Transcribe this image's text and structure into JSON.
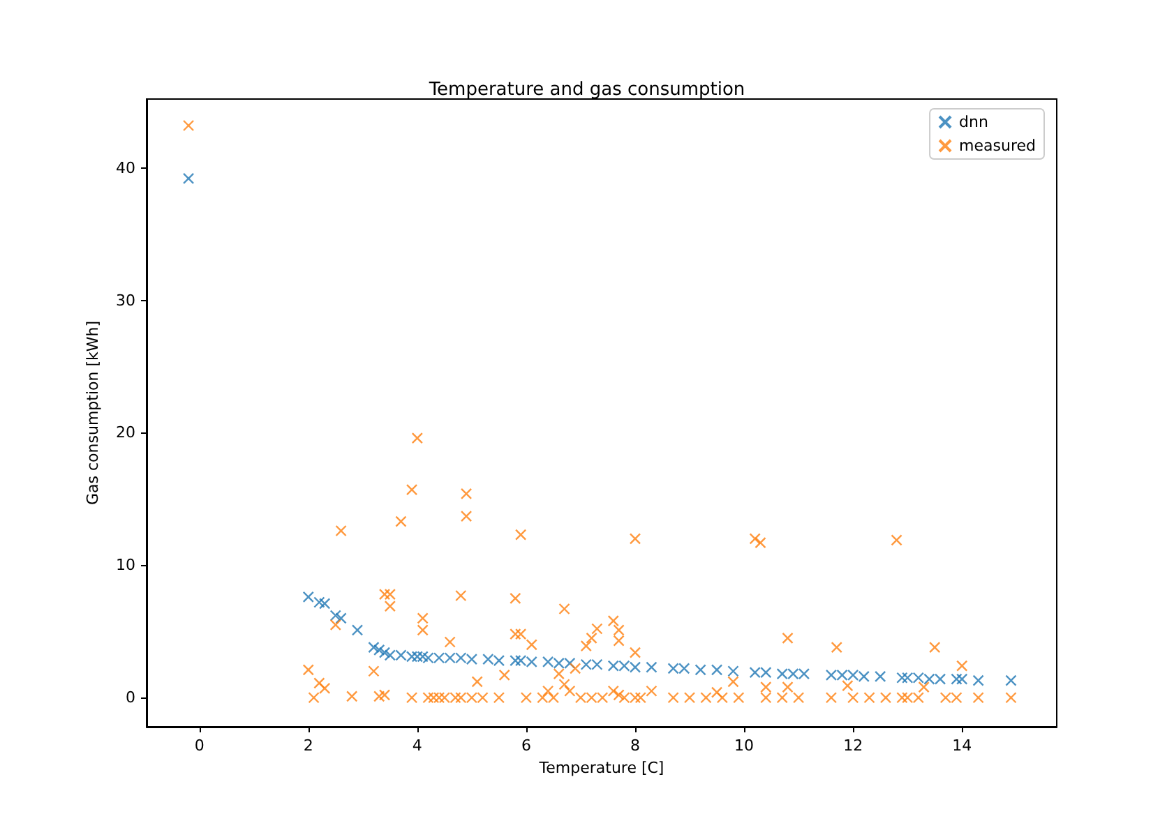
{
  "chart_data": {
    "type": "scatter",
    "title": "Temperature and gas consumption",
    "xlabel": "Temperature [C]",
    "ylabel": "Gas consumption [kWh]",
    "xlim": [
      -0.97,
      15.74
    ],
    "ylim": [
      -2.2,
      45.2
    ],
    "xticks": [
      0,
      2,
      4,
      6,
      8,
      10,
      12,
      14
    ],
    "yticks": [
      0,
      10,
      20,
      30,
      40
    ],
    "grid": false,
    "legend": "top right",
    "marker": "cross",
    "series": [
      {
        "name": "dnn",
        "color": "#1f77b4",
        "x": [
          -0.2,
          2.0,
          2.2,
          2.3,
          2.5,
          2.6,
          2.9,
          3.2,
          3.3,
          3.4,
          3.5,
          3.7,
          3.9,
          4.0,
          4.1,
          4.2,
          4.4,
          4.6,
          4.8,
          5.0,
          5.3,
          5.5,
          5.8,
          5.9,
          6.1,
          6.4,
          6.6,
          6.8,
          7.1,
          7.3,
          7.6,
          7.8,
          8.0,
          8.3,
          8.7,
          8.9,
          9.2,
          9.5,
          9.8,
          10.2,
          10.4,
          10.7,
          10.9,
          11.1,
          11.6,
          11.8,
          12.0,
          12.2,
          12.5,
          12.9,
          13.0,
          13.2,
          13.4,
          13.6,
          13.9,
          14.0,
          14.3,
          14.9
        ],
        "values": [
          39.2,
          7.6,
          7.2,
          7.1,
          6.2,
          6.0,
          5.1,
          3.8,
          3.6,
          3.4,
          3.2,
          3.2,
          3.1,
          3.1,
          3.1,
          3.0,
          3.0,
          3.0,
          3.0,
          2.9,
          2.9,
          2.8,
          2.8,
          2.8,
          2.7,
          2.7,
          2.6,
          2.6,
          2.5,
          2.5,
          2.4,
          2.4,
          2.3,
          2.3,
          2.2,
          2.2,
          2.1,
          2.1,
          2.0,
          1.9,
          1.9,
          1.8,
          1.8,
          1.8,
          1.7,
          1.7,
          1.7,
          1.6,
          1.6,
          1.5,
          1.5,
          1.5,
          1.4,
          1.4,
          1.4,
          1.4,
          1.3,
          1.3
        ]
      },
      {
        "name": "measured",
        "color": "#ff7f0e",
        "x": [
          -0.2,
          4.0,
          3.9,
          4.9,
          4.9,
          3.7,
          2.6,
          5.9,
          8.0,
          10.2,
          10.3,
          12.8,
          4.1,
          4.1,
          3.5,
          3.4,
          3.5,
          4.8,
          5.8,
          6.7,
          2.5,
          4.6,
          6.1,
          7.6,
          7.7,
          7.3,
          7.2,
          7.1,
          7.7,
          8.0,
          5.8,
          5.9,
          10.8,
          11.7,
          13.5,
          14.0,
          2.0,
          2.2,
          2.3,
          3.2,
          3.4,
          3.3,
          2.1,
          2.8,
          3.9,
          4.2,
          4.3,
          4.4,
          4.7,
          4.8,
          5.0,
          5.1,
          5.6,
          5.5,
          6.0,
          6.3,
          6.4,
          6.5,
          6.6,
          6.7,
          6.8,
          6.9,
          7.0,
          7.2,
          7.4,
          7.6,
          7.7,
          7.8,
          8.0,
          8.1,
          8.3,
          8.7,
          9.0,
          9.3,
          9.5,
          9.6,
          9.8,
          9.9,
          10.4,
          10.4,
          10.7,
          10.8,
          11.0,
          11.6,
          11.9,
          12.0,
          12.3,
          12.6,
          12.9,
          13.0,
          13.2,
          13.3,
          13.7,
          13.9,
          14.3,
          14.9,
          4.5,
          5.2
        ],
        "values": [
          43.2,
          19.6,
          15.7,
          15.4,
          13.7,
          13.3,
          12.6,
          12.3,
          12.0,
          12.0,
          11.7,
          11.9,
          6.0,
          5.1,
          7.8,
          7.8,
          6.9,
          7.7,
          7.5,
          6.7,
          5.5,
          4.2,
          4.0,
          5.8,
          5.1,
          5.2,
          4.5,
          3.9,
          4.3,
          3.4,
          4.8,
          4.8,
          4.5,
          3.8,
          3.8,
          2.4,
          2.1,
          1.1,
          0.7,
          2.0,
          0.2,
          0.1,
          0.0,
          0.1,
          0.0,
          0.0,
          0.0,
          0.0,
          0.0,
          0.0,
          0.0,
          1.2,
          1.7,
          0.0,
          0.0,
          0.0,
          0.5,
          0.0,
          1.8,
          1.0,
          0.5,
          2.2,
          0.0,
          0.0,
          0.0,
          0.5,
          0.2,
          0.0,
          0.0,
          0.0,
          0.5,
          0.0,
          0.0,
          0.0,
          0.4,
          0.0,
          1.2,
          0.0,
          0.8,
          0.0,
          0.0,
          0.8,
          0.0,
          0.0,
          0.9,
          0.0,
          0.0,
          0.0,
          0.0,
          0.0,
          0.0,
          0.8,
          0.0,
          0.0,
          0.0,
          0.0,
          0.0,
          0.0
        ]
      }
    ]
  }
}
